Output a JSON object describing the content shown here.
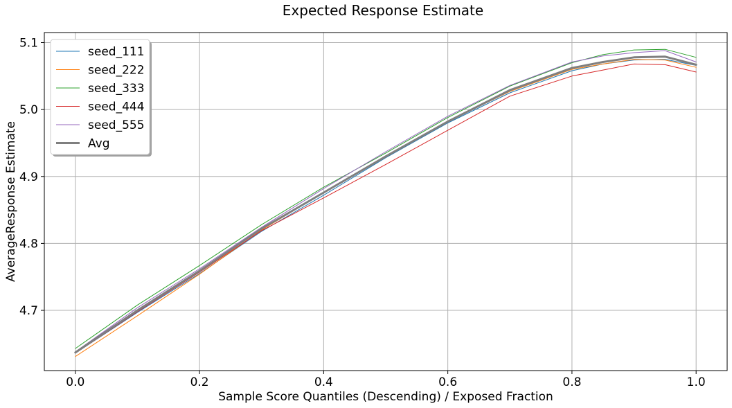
{
  "chart_data": {
    "type": "line",
    "title": "Expected Response Estimate",
    "xlabel": "Sample Score Quantiles (Descending) / Exposed Fraction",
    "ylabel": "AverageResponse Estimate",
    "xlim": [
      -0.05,
      1.05
    ],
    "ylim": [
      4.61,
      5.115
    ],
    "xticks": [
      0.0,
      0.2,
      0.4,
      0.6,
      0.8,
      1.0
    ],
    "xtick_labels": [
      "0.0",
      "0.2",
      "0.4",
      "0.6",
      "0.8",
      "1.0"
    ],
    "yticks": [
      4.7,
      4.8,
      4.9,
      5.0,
      5.1
    ],
    "ytick_labels": [
      "4.7",
      "4.8",
      "4.9",
      "5.0",
      "5.1"
    ],
    "grid": true,
    "legend_position": "top-left",
    "x": [
      0.0,
      0.1,
      0.2,
      0.3,
      0.4,
      0.5,
      0.6,
      0.7,
      0.8,
      0.85,
      0.9,
      0.95,
      1.0
    ],
    "series": [
      {
        "name": "seed_111",
        "color": "#1f77b4",
        "linewidth": 1,
        "values": [
          4.636,
          4.697,
          4.755,
          4.818,
          4.872,
          4.928,
          4.98,
          5.025,
          5.058,
          5.068,
          5.074,
          5.075,
          5.066
        ]
      },
      {
        "name": "seed_222",
        "color": "#ff7f0e",
        "linewidth": 1,
        "values": [
          4.631,
          4.692,
          4.754,
          4.82,
          4.876,
          4.93,
          4.982,
          5.027,
          5.06,
          5.068,
          5.075,
          5.074,
          5.063
        ]
      },
      {
        "name": "seed_333",
        "color": "#2ca02c",
        "linewidth": 1,
        "values": [
          4.643,
          4.708,
          4.767,
          4.828,
          4.884,
          4.935,
          4.988,
          5.035,
          5.07,
          5.082,
          5.089,
          5.09,
          5.078
        ]
      },
      {
        "name": "seed_444",
        "color": "#d62728",
        "linewidth": 1,
        "values": [
          4.636,
          4.698,
          4.757,
          4.819,
          4.868,
          4.918,
          4.969,
          5.02,
          5.05,
          5.059,
          5.068,
          5.067,
          5.056
        ]
      },
      {
        "name": "seed_555",
        "color": "#9467bd",
        "linewidth": 1,
        "values": [
          4.638,
          4.704,
          4.762,
          4.824,
          4.882,
          4.937,
          4.99,
          5.036,
          5.071,
          5.08,
          5.085,
          5.088,
          5.071
        ]
      },
      {
        "name": "Avg",
        "color": "#7f7f7f",
        "linewidth": 3,
        "values": [
          4.637,
          4.7,
          4.759,
          4.822,
          4.876,
          4.93,
          4.982,
          5.029,
          5.062,
          5.071,
          5.078,
          5.079,
          5.067
        ]
      }
    ]
  }
}
